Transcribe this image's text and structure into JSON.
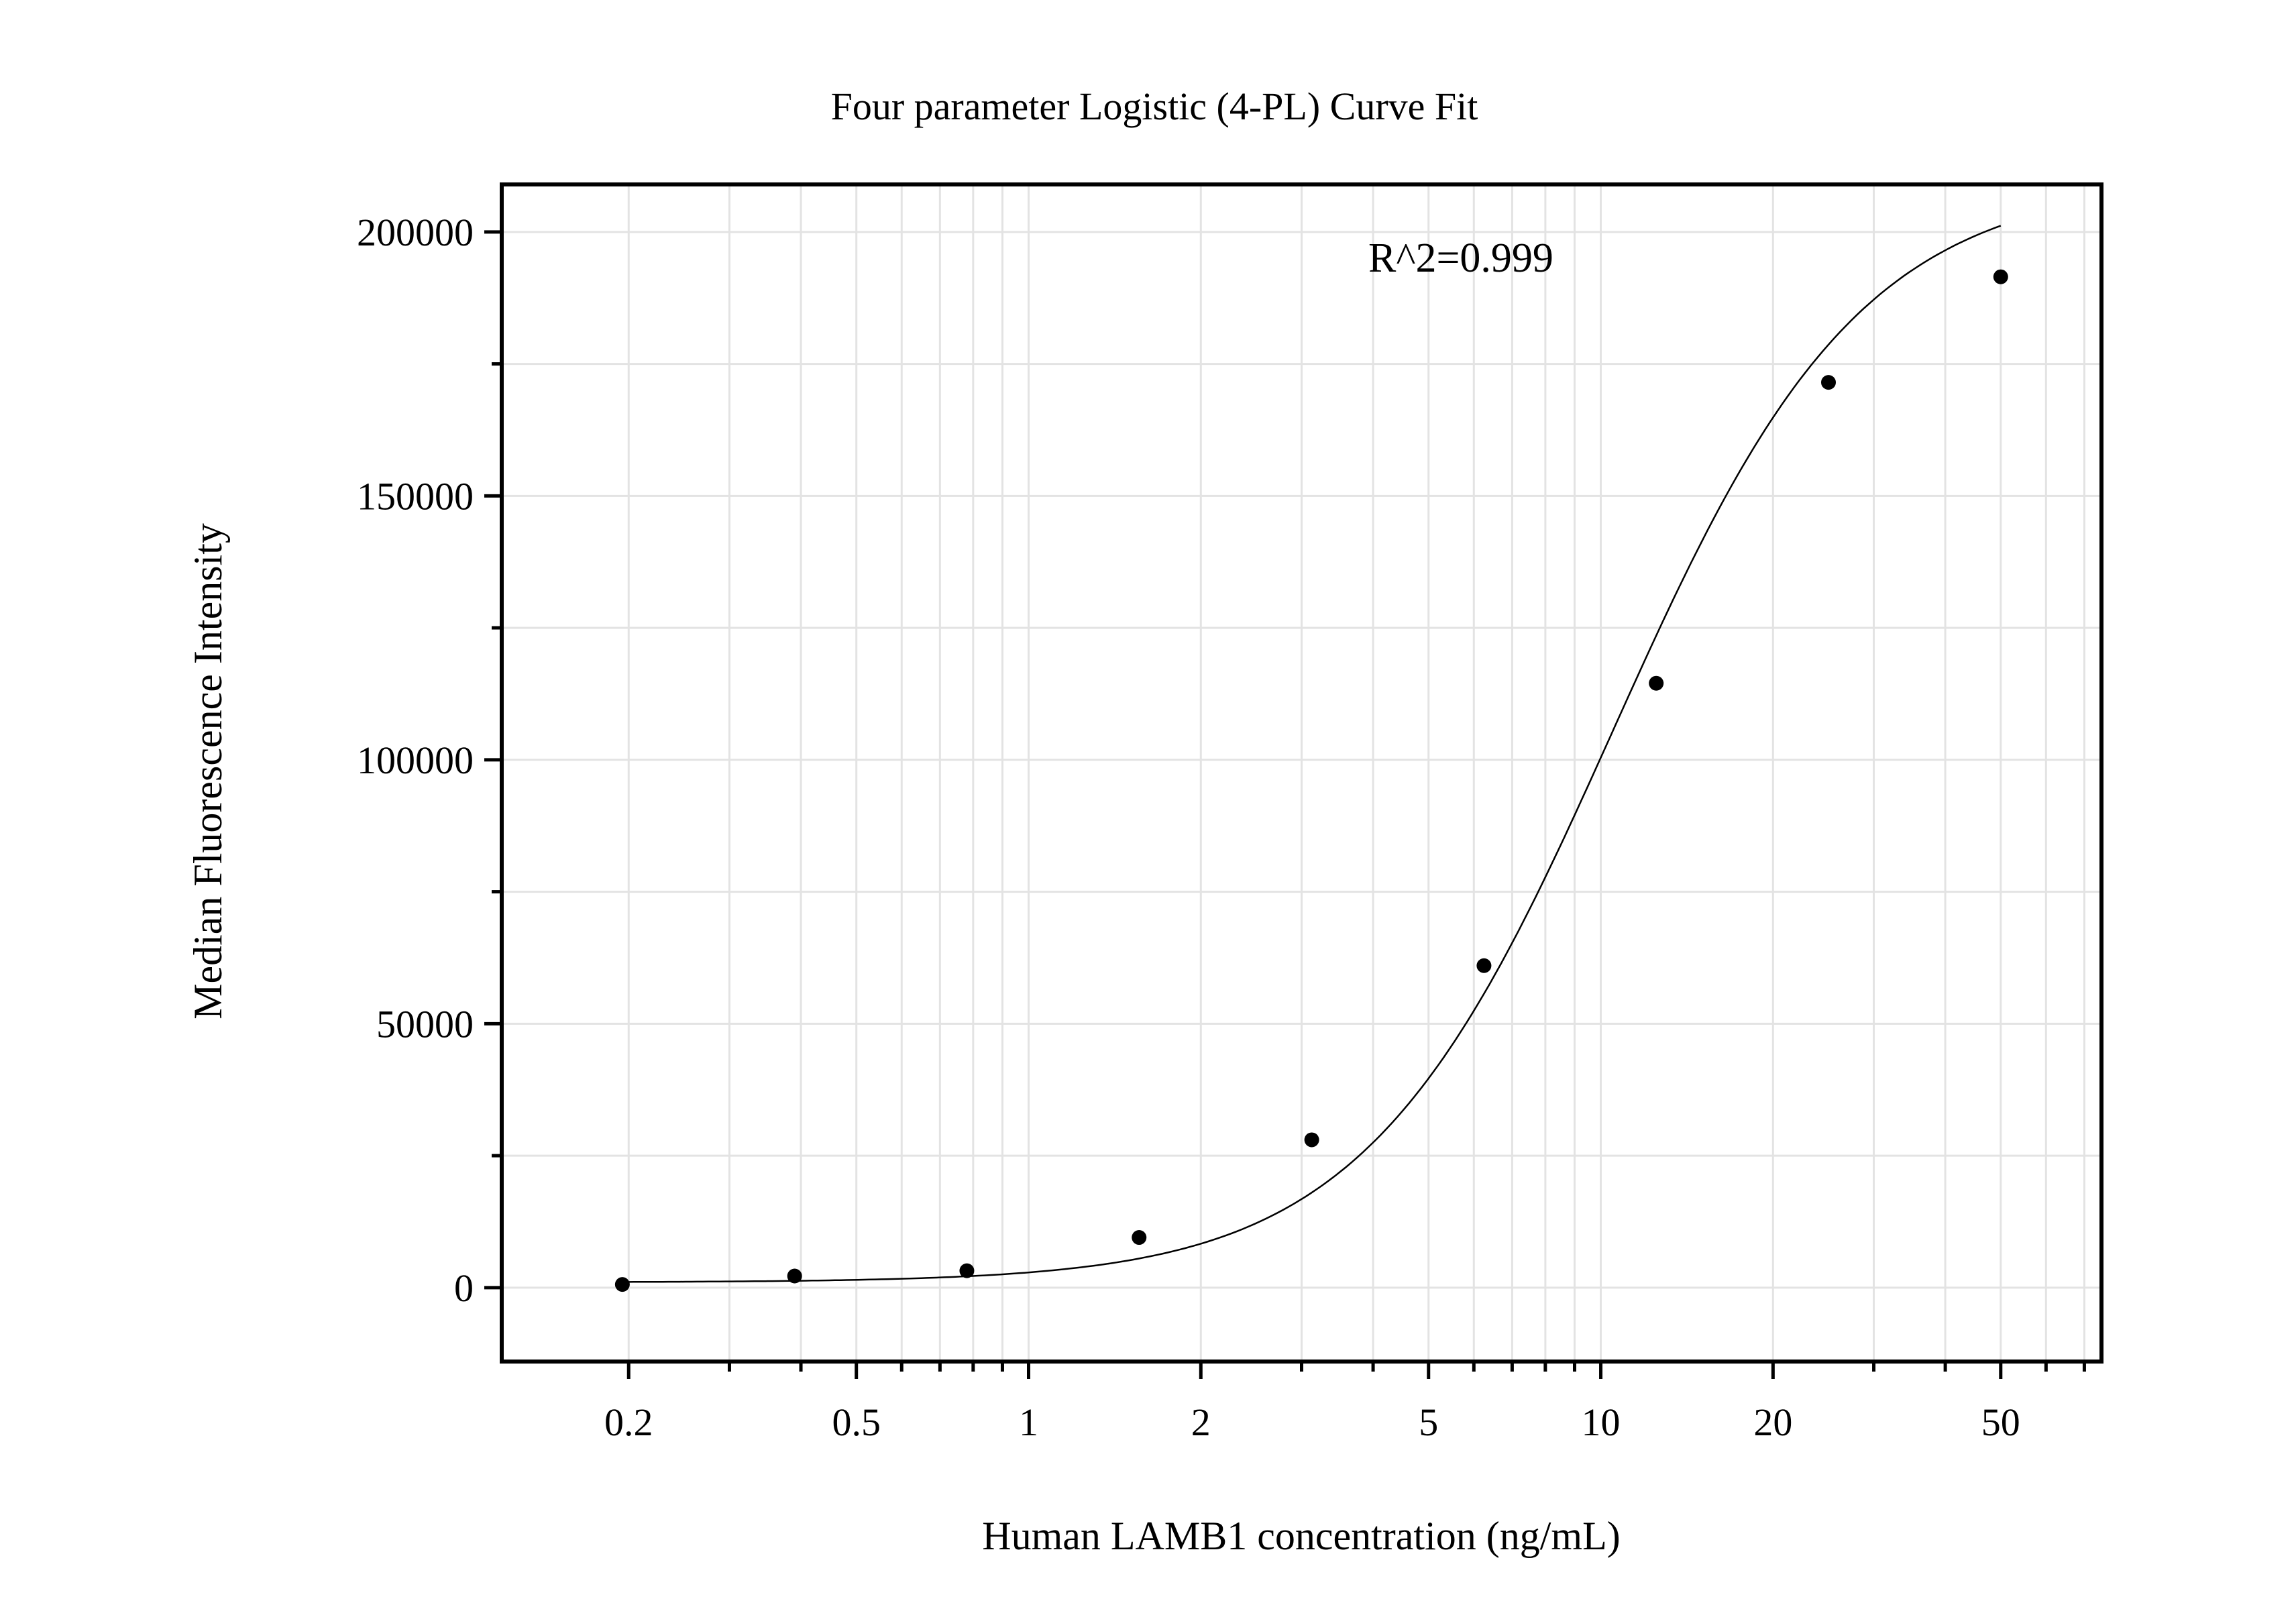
{
  "chart_data": {
    "type": "scatter",
    "title": "Four parameter Logistic (4-PL) Curve Fit",
    "xlabel": "Human LAMB1 concentration (ng/mL)",
    "ylabel": "Median Fluorescence Intensity",
    "x_scale": "log",
    "xlim": [
      0.12,
      75
    ],
    "ylim": [
      -14000,
      209000
    ],
    "x_tick_labels": [
      "0.2",
      "0.5",
      "1",
      "2",
      "5",
      "10",
      "20",
      "50"
    ],
    "y_tick_labels": [
      "0",
      "50000",
      "100000",
      "150000",
      "200000"
    ],
    "annotation": "R^2=0.999",
    "grid": true,
    "series": [
      {
        "kind": "points",
        "x": [
          0.195,
          0.39,
          0.78,
          1.56,
          3.125,
          6.25,
          12.5,
          25,
          50
        ],
        "y": [
          600,
          2200,
          3200,
          9500,
          28000,
          61000,
          114500,
          171500,
          191500
        ]
      },
      {
        "kind": "fit_curve",
        "model": "4PL",
        "params": {
          "A": 1000,
          "B": 2.0,
          "C": 10.5,
          "D": 210000
        },
        "x_range": [
          0.195,
          50
        ]
      }
    ]
  }
}
